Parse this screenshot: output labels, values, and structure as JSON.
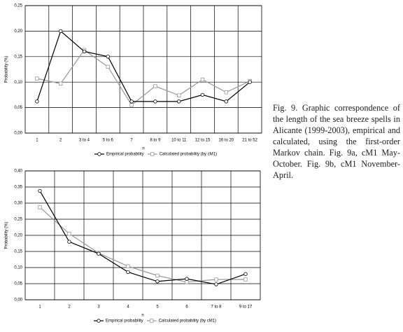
{
  "chart_data": [
    {
      "type": "line",
      "x_label": "n",
      "y_label": "Probability (%)",
      "categories": [
        "1",
        "2",
        "3 to 4",
        "5 to 6",
        "7",
        "8 to 9",
        "10 to 11",
        "12 to 15",
        "16 to 20",
        "21 to 52"
      ],
      "series": [
        {
          "name": "Empirical probability",
          "color": "#000000",
          "marker": "circle",
          "values": [
            0.062,
            0.2,
            0.16,
            0.15,
            0.062,
            0.062,
            0.062,
            0.075,
            0.062,
            0.1
          ]
        },
        {
          "name": "Calculated probability (by cM1)",
          "color": "#999999",
          "marker": "square",
          "values": [
            0.107,
            0.097,
            0.163,
            0.13,
            0.055,
            0.092,
            0.074,
            0.105,
            0.08,
            0.102
          ]
        }
      ],
      "ylim": [
        0,
        0.25
      ],
      "yticks": [
        {
          "value": 0,
          "label": "0,00"
        },
        {
          "value": 0.05,
          "label": "0,05"
        },
        {
          "value": 0.1,
          "label": "0,10"
        },
        {
          "value": 0.15,
          "label": "0,15"
        },
        {
          "value": 0.2,
          "label": "0,20"
        },
        {
          "value": 0.25,
          "label": "0,25"
        }
      ],
      "grid": true,
      "legend": "bottom"
    },
    {
      "type": "line",
      "x_label": "n",
      "y_label": "Probability (%)",
      "categories": [
        "1",
        "2",
        "3",
        "4",
        "5",
        "6",
        "7 to 8",
        "9 to 17"
      ],
      "series": [
        {
          "name": "Empirical probability",
          "color": "#000000",
          "marker": "circle",
          "values": [
            0.338,
            0.18,
            0.143,
            0.086,
            0.057,
            0.065,
            0.048,
            0.08
          ]
        },
        {
          "name": "Calculated probability (by cM1)",
          "color": "#999999",
          "marker": "square",
          "values": [
            0.287,
            0.205,
            0.145,
            0.104,
            0.075,
            0.055,
            0.063,
            0.063
          ]
        }
      ],
      "ylim": [
        0,
        0.4
      ],
      "yticks": [
        {
          "value": 0,
          "label": "0,00"
        },
        {
          "value": 0.05,
          "label": "0,05"
        },
        {
          "value": 0.1,
          "label": "0,10"
        },
        {
          "value": 0.15,
          "label": "0,15"
        },
        {
          "value": 0.2,
          "label": "0,20"
        },
        {
          "value": 0.25,
          "label": "0,25"
        },
        {
          "value": 0.3,
          "label": "0,30"
        },
        {
          "value": 0.35,
          "label": "0,35"
        },
        {
          "value": 0.4,
          "label": "0,40"
        }
      ],
      "grid": true,
      "legend": "bottom"
    }
  ],
  "caption": "Fig. 9. Graphic correspondence of the length of the sea breeze spells in Alicante (1999-2003), empirical and calculated, using the first-order Markov chain. Fig. 9a, cM1 May-October. Fig. 9b, cM1 November-April."
}
